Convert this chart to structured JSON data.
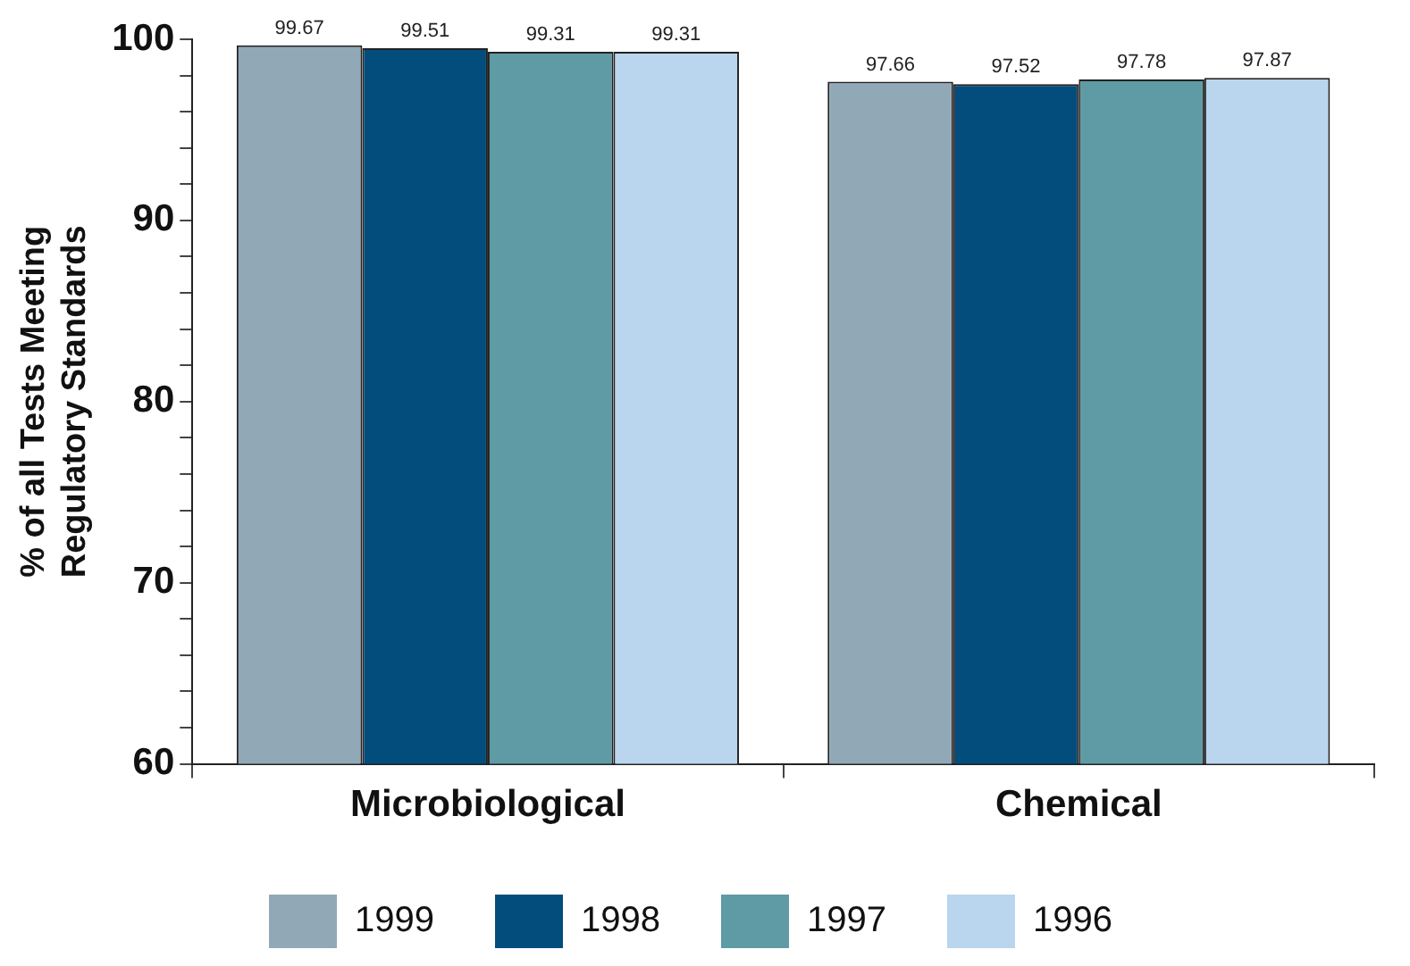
{
  "chart_data": {
    "type": "bar",
    "ylabel": "% of all Tests Meeting\nRegulatory Standards",
    "categories": [
      "Microbiological",
      "Chemical"
    ],
    "series": [
      {
        "name": "1999",
        "color": "#91a8b7",
        "values": [
          99.67,
          97.66
        ]
      },
      {
        "name": "1998",
        "color": "#034d7c",
        "values": [
          99.51,
          97.52
        ]
      },
      {
        "name": "1997",
        "color": "#5f9ba4",
        "values": [
          99.31,
          97.78
        ]
      },
      {
        "name": "1996",
        "color": "#bad5ee",
        "values": [
          99.31,
          97.87
        ]
      }
    ],
    "ylim": [
      60,
      100
    ],
    "yticks": [
      60,
      {
        "value": 62,
        "label": null
      },
      {
        "value": 64,
        "label": null
      },
      {
        "value": 66,
        "label": null
      },
      {
        "value": 68,
        "label": null
      },
      70,
      {
        "value": 72,
        "label": null
      },
      {
        "value": 74,
        "label": null
      },
      {
        "value": 76,
        "label": null
      },
      {
        "value": 78,
        "label": null
      },
      80,
      {
        "value": 82,
        "label": null
      },
      {
        "value": 84,
        "label": null
      },
      {
        "value": 86,
        "label": null
      },
      {
        "value": 88,
        "label": null
      },
      90,
      {
        "value": 92,
        "label": null
      },
      {
        "value": 94,
        "label": null
      },
      {
        "value": 96,
        "label": null
      },
      {
        "value": 98,
        "label": null
      },
      100
    ],
    "grid": false,
    "legend": "bottom",
    "data_labels": true
  }
}
